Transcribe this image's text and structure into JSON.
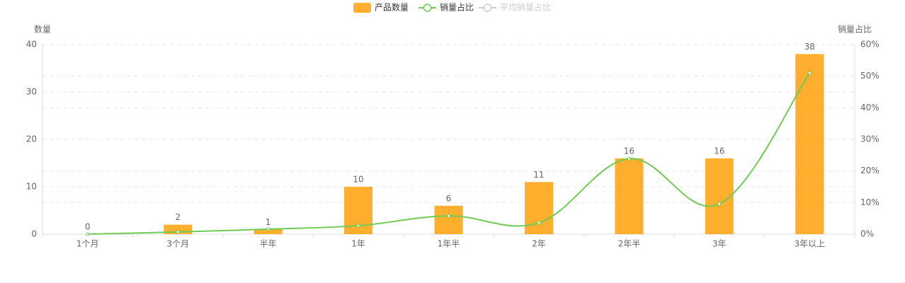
{
  "chart_data": {
    "type": "bar-line",
    "categories": [
      "1个月",
      "3个月",
      "半年",
      "1年",
      "1年半",
      "2年",
      "2年半",
      "3年",
      "3年以上"
    ],
    "ylabel": "数量",
    "y2label": "销量占比",
    "ylim": [
      0,
      40
    ],
    "yticks": [
      0,
      10,
      20,
      30,
      40
    ],
    "y2lim": [
      0,
      60
    ],
    "y2ticks": [
      {
        "value": 0,
        "label": "0%"
      },
      {
        "value": 10,
        "label": "10%"
      },
      {
        "value": 20,
        "label": "20%"
      },
      {
        "value": 30,
        "label": "30%"
      },
      {
        "value": 40,
        "label": "40%"
      },
      {
        "value": 50,
        "label": "50%"
      },
      {
        "value": 60,
        "label": "60%"
      }
    ],
    "grid": true,
    "series": [
      {
        "name": "产品数量",
        "kind": "bar",
        "color": "#ffae2e",
        "values": [
          0,
          2,
          1,
          10,
          6,
          11,
          16,
          16,
          38
        ]
      },
      {
        "name": "销量占比",
        "kind": "line",
        "axis": "y2",
        "color": "#6fcb52",
        "values": [
          0,
          0.7,
          1.6,
          2.7,
          5.8,
          3.6,
          23.9,
          9.6,
          51
        ]
      },
      {
        "name": "平均销量占比",
        "kind": "line",
        "axis": "y2",
        "color": "#cccccc",
        "hidden": true
      }
    ]
  }
}
